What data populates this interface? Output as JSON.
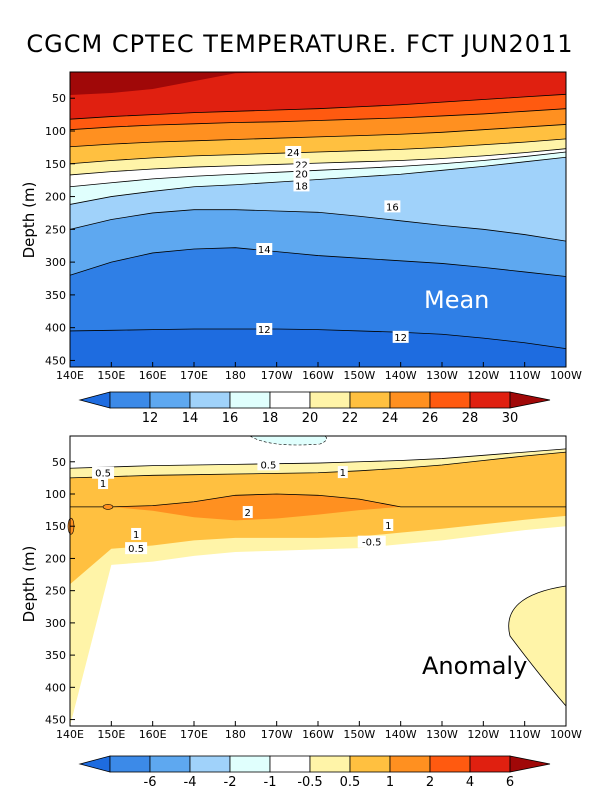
{
  "title": "CGCM CPTEC TEMPERATURE. FCT JUN2011",
  "chart_data": [
    {
      "type": "heatmap",
      "panel": "Mean",
      "ylabel": "Depth (m)",
      "x_ticks": [
        "140E",
        "150E",
        "160E",
        "170E",
        "180",
        "170W",
        "160W",
        "150W",
        "140W",
        "130W",
        "120W",
        "110W",
        "100W"
      ],
      "y_ticks": [
        "50",
        "100",
        "150",
        "200",
        "250",
        "300",
        "350",
        "400",
        "450"
      ],
      "ylim": [
        460,
        10
      ],
      "colorbar": {
        "labels": [
          "12",
          "14",
          "16",
          "18",
          "20",
          "22",
          "24",
          "26",
          "28",
          "30"
        ],
        "colors": [
          "#1e6ce0",
          "#3c8ae8",
          "#5ea8f0",
          "#a0d2fa",
          "#e0fffd",
          "#ffffff",
          "#fff4a8",
          "#ffc040",
          "#ff9020",
          "#ff5a10",
          "#e02010",
          "#a00808"
        ]
      },
      "bands": [
        {
          "lo": "<12",
          "color": "#1e6ce0",
          "top": [
            405,
            404,
            403,
            402,
            402,
            402,
            403,
            405,
            407,
            410,
            416,
            423,
            432
          ],
          "bottom": [
            460,
            460,
            460,
            460,
            460,
            460,
            460,
            460,
            460,
            460,
            460,
            460,
            460
          ]
        },
        {
          "lo": "12-14",
          "color": "#2f7fe6",
          "top": [
            320,
            300,
            286,
            280,
            278,
            284,
            290,
            294,
            298,
            302,
            308,
            315,
            322
          ],
          "bottom": [
            405,
            404,
            403,
            402,
            402,
            402,
            403,
            405,
            407,
            410,
            416,
            423,
            432
          ]
        },
        {
          "lo": "14-16",
          "color": "#5ea8f0",
          "top": [
            250,
            235,
            225,
            220,
            220,
            222,
            224,
            230,
            237,
            244,
            250,
            258,
            268
          ],
          "bottom": [
            320,
            300,
            286,
            280,
            278,
            284,
            290,
            294,
            298,
            302,
            308,
            315,
            322
          ]
        },
        {
          "lo": "16-18",
          "color": "#a0d2fa",
          "top": [
            212,
            200,
            192,
            185,
            182,
            178,
            174,
            170,
            166,
            160,
            154,
            147,
            140
          ],
          "bottom": [
            250,
            235,
            225,
            220,
            220,
            222,
            224,
            230,
            237,
            244,
            250,
            258,
            268
          ]
        },
        {
          "lo": "18-20",
          "color": "#e0fffd",
          "top": [
            185,
            179,
            173,
            169,
            166,
            163,
            160,
            157,
            154,
            150,
            145,
            139,
            132
          ],
          "bottom": [
            212,
            200,
            192,
            185,
            182,
            178,
            174,
            170,
            166,
            160,
            154,
            147,
            140
          ]
        },
        {
          "lo": "20-22",
          "color": "#ffffff",
          "top": [
            167,
            162,
            158,
            155,
            153,
            151,
            149,
            147,
            145,
            142,
            138,
            133,
            127
          ],
          "bottom": [
            185,
            179,
            173,
            169,
            166,
            163,
            160,
            157,
            154,
            150,
            145,
            139,
            132
          ]
        },
        {
          "lo": "22-24",
          "color": "#fff4a8",
          "top": [
            150,
            145,
            141,
            138,
            136,
            134,
            132,
            130,
            128,
            125,
            121,
            117,
            112
          ],
          "bottom": [
            167,
            162,
            158,
            155,
            153,
            151,
            149,
            147,
            145,
            142,
            138,
            133,
            127
          ]
        },
        {
          "lo": "24-26",
          "color": "#ffc040",
          "top": [
            124,
            120,
            117,
            115,
            113,
            111,
            109,
            107,
            105,
            102,
            98,
            94,
            90
          ],
          "bottom": [
            150,
            145,
            141,
            138,
            136,
            134,
            132,
            130,
            128,
            125,
            121,
            117,
            112
          ]
        },
        {
          "lo": "26-28",
          "color": "#ff9020",
          "top": [
            98,
            94,
            91,
            89,
            87,
            86,
            84,
            82,
            80,
            77,
            74,
            70,
            66
          ],
          "bottom": [
            124,
            120,
            117,
            115,
            113,
            111,
            109,
            107,
            105,
            102,
            98,
            94,
            90
          ]
        },
        {
          "lo": "28-30",
          "color": "#ff5a10",
          "top": [
            82,
            78,
            75,
            72,
            70,
            68,
            66,
            63,
            60,
            56,
            52,
            48,
            44
          ],
          "bottom": [
            98,
            94,
            91,
            89,
            87,
            86,
            84,
            82,
            80,
            77,
            74,
            70,
            66
          ]
        },
        {
          "lo": "30+",
          "color": "#e02010",
          "top": [
            10,
            10,
            10,
            10,
            10,
            10,
            10,
            10,
            10,
            10,
            10,
            10,
            10
          ],
          "bottom": [
            82,
            78,
            75,
            72,
            70,
            68,
            66,
            63,
            60,
            56,
            52,
            48,
            44
          ]
        },
        {
          "lo": "core",
          "color": "#a00808",
          "top": [
            10,
            10,
            10,
            10,
            10,
            10,
            10,
            10,
            10,
            10,
            10,
            10,
            10
          ],
          "bottom": [
            45,
            42,
            36,
            24,
            12,
            10,
            10,
            10,
            10,
            10,
            10,
            10,
            10
          ]
        }
      ],
      "contour_labels": [
        {
          "text": "24",
          "lon": 5.4,
          "depth": 132
        },
        {
          "text": "22",
          "lon": 5.6,
          "depth": 151
        },
        {
          "text": "20",
          "lon": 5.6,
          "depth": 165
        },
        {
          "text": "18",
          "lon": 5.6,
          "depth": 183
        },
        {
          "text": "16",
          "lon": 7.8,
          "depth": 215
        },
        {
          "text": "14",
          "lon": 4.7,
          "depth": 280
        },
        {
          "text": "12",
          "lon": 4.7,
          "depth": 402
        },
        {
          "text": "12",
          "lon": 8.0,
          "depth": 414
        }
      ],
      "note": "Mean"
    },
    {
      "type": "heatmap",
      "panel": "Anomaly",
      "ylabel": "Depth (m)",
      "x_ticks": [
        "140E",
        "150E",
        "160E",
        "170E",
        "180",
        "170W",
        "160W",
        "150W",
        "140W",
        "130W",
        "120W",
        "110W",
        "100W"
      ],
      "y_ticks": [
        "50",
        "100",
        "150",
        "200",
        "250",
        "300",
        "350",
        "400",
        "450"
      ],
      "ylim": [
        460,
        10
      ],
      "colorbar": {
        "labels": [
          "-6",
          "-4",
          "-2",
          "-1",
          "-0.5",
          "0.5",
          "1",
          "2",
          "4",
          "6"
        ],
        "colors": [
          "#1e6ce0",
          "#3c8ae8",
          "#5ea8f0",
          "#a0d2fa",
          "#e0fffd",
          "#ffffff",
          "#fff4a8",
          "#ffc040",
          "#ff9020",
          "#ff5a10",
          "#e02010",
          "#a00808"
        ]
      },
      "bands": [
        {
          "lo": "0.5-1",
          "color": "#fff4a8",
          "top": [
            60,
            58,
            56,
            55,
            54,
            53,
            52,
            50,
            48,
            45,
            40,
            35,
            30
          ],
          "bottom": [
            460,
            210,
            205,
            196,
            190,
            188,
            186,
            184,
            178,
            172,
            164,
            156,
            150
          ]
        },
        {
          "lo": "1-2",
          "color": "#ffc040",
          "top": [
            75,
            73,
            71,
            70,
            69,
            68,
            67,
            64,
            60,
            55,
            48,
            41,
            35
          ],
          "bottom": [
            240,
            185,
            180,
            172,
            168,
            168,
            168,
            166,
            160,
            154,
            147,
            140,
            134
          ]
        },
        {
          "lo": "2+",
          "color": "#ff9020",
          "top": [
            120,
            120,
            118,
            112,
            102,
            100,
            102,
            108,
            120,
            120,
            120,
            120,
            120
          ],
          "bottom": [
            120,
            120,
            126,
            136,
            141,
            138,
            132,
            125,
            120,
            120,
            120,
            120,
            120
          ]
        }
      ],
      "contour_labels": [
        {
          "text": "0.5",
          "lon": 0.8,
          "depth": 67
        },
        {
          "text": "1",
          "lon": 0.8,
          "depth": 83
        },
        {
          "text": "0.5",
          "lon": 4.8,
          "depth": 54
        },
        {
          "text": "1",
          "lon": 6.6,
          "depth": 66
        },
        {
          "text": "2",
          "lon": 4.3,
          "depth": 128
        },
        {
          "text": "1",
          "lon": 1.6,
          "depth": 162
        },
        {
          "text": "0.5",
          "lon": 1.6,
          "depth": 184
        },
        {
          "text": "1",
          "lon": 7.7,
          "depth": 148
        },
        {
          "text": "-0.5",
          "lon": 7.3,
          "depth": 174
        }
      ],
      "note": "Anomaly"
    }
  ]
}
